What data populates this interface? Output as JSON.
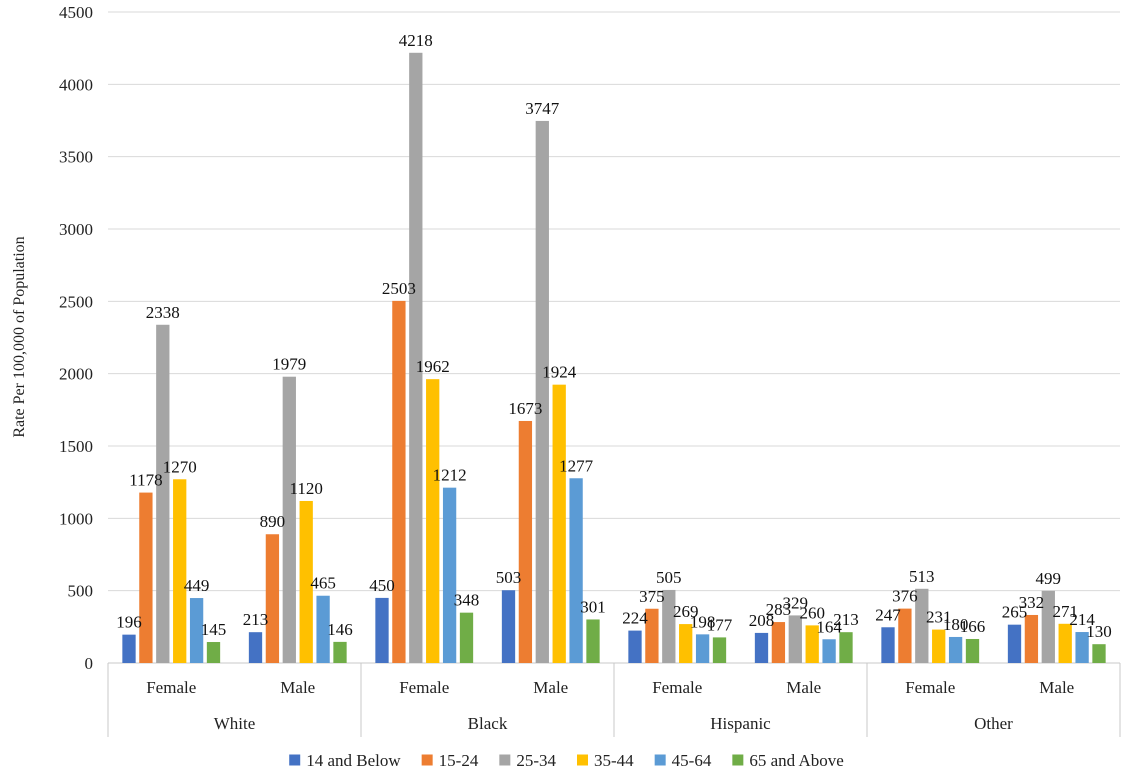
{
  "chart_data": {
    "type": "bar",
    "title": "",
    "ylabel": "Rate Per 100,000 of Population",
    "xlabel": "",
    "ylim": [
      0,
      4500
    ],
    "y_ticks": [
      0,
      500,
      1000,
      1500,
      2000,
      2500,
      3000,
      3500,
      4000,
      4500
    ],
    "grid": true,
    "legend_position": "bottom",
    "groups": [
      "White",
      "Black",
      "Hispanic",
      "Other"
    ],
    "subcategories": [
      "Female",
      "Male"
    ],
    "categories": [
      {
        "group": "White",
        "label": "Female"
      },
      {
        "group": "White",
        "label": "Male"
      },
      {
        "group": "Black",
        "label": "Female"
      },
      {
        "group": "Black",
        "label": "Male"
      },
      {
        "group": "Hispanic",
        "label": "Female"
      },
      {
        "group": "Hispanic",
        "label": "Male"
      },
      {
        "group": "Other",
        "label": "Female"
      },
      {
        "group": "Other",
        "label": "Male"
      }
    ],
    "series": [
      {
        "name": "14 and Below",
        "color": "#4472C4",
        "values": [
          196,
          213,
          450,
          503,
          224,
          208,
          247,
          265
        ]
      },
      {
        "name": "15-24",
        "color": "#ED7D31",
        "values": [
          1178,
          890,
          2503,
          1673,
          375,
          283,
          376,
          332
        ]
      },
      {
        "name": "25-34",
        "color": "#A5A5A5",
        "values": [
          2338,
          1979,
          4218,
          3747,
          505,
          329,
          513,
          499
        ]
      },
      {
        "name": "35-44",
        "color": "#FFC000",
        "values": [
          1270,
          1120,
          1962,
          1924,
          269,
          260,
          231,
          271
        ]
      },
      {
        "name": "45-64",
        "color": "#5B9BD5",
        "values": [
          449,
          465,
          1212,
          1277,
          198,
          164,
          180,
          214
        ]
      },
      {
        "name": "65 and Above",
        "color": "#70AD47",
        "values": [
          145,
          146,
          348,
          301,
          177,
          213,
          166,
          130
        ]
      }
    ]
  }
}
